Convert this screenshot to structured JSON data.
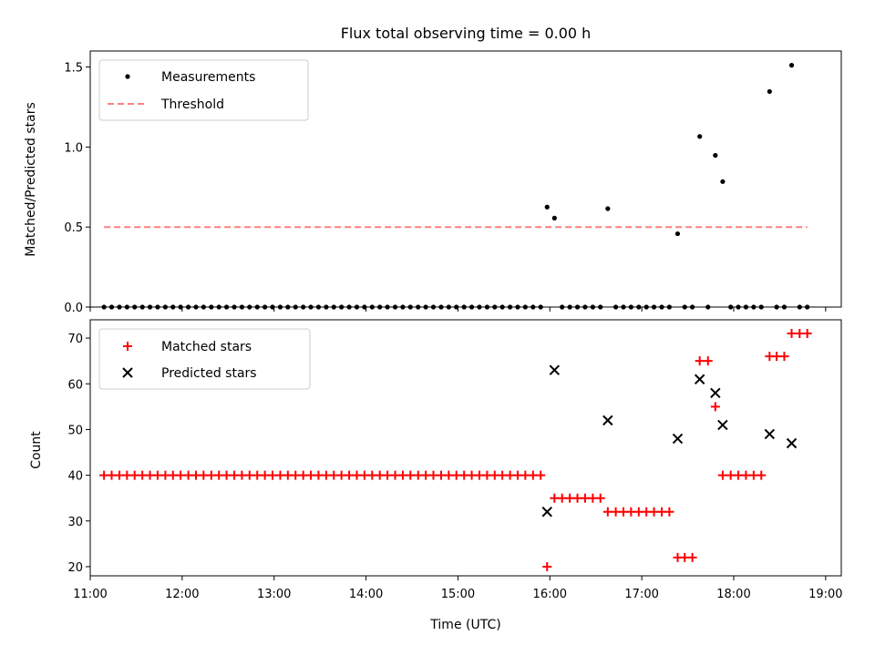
{
  "chart_data": [
    {
      "type": "scatter",
      "title": "Flux total observing time = 0.00 h",
      "xlabel": "",
      "ylabel": "Matched/Predicted stars",
      "xlim": [
        11.0,
        19.17
      ],
      "ylim": [
        0,
        1.6
      ],
      "yticks": [
        "0.0",
        "0.5",
        "1.0",
        "1.5"
      ],
      "legend_position": "top-left",
      "series": [
        {
          "name": "Measurements",
          "marker": "dot",
          "color": "#000000",
          "x": [
            11.15,
            11.233,
            11.317,
            11.4,
            11.483,
            11.567,
            11.65,
            11.733,
            11.817,
            11.9,
            11.983,
            12.067,
            12.15,
            12.233,
            12.317,
            12.4,
            12.483,
            12.567,
            12.65,
            12.733,
            12.817,
            12.9,
            12.983,
            13.067,
            13.15,
            13.233,
            13.317,
            13.4,
            13.483,
            13.567,
            13.65,
            13.733,
            13.817,
            13.9,
            13.983,
            14.067,
            14.15,
            14.233,
            14.317,
            14.4,
            14.483,
            14.567,
            14.65,
            14.733,
            14.817,
            14.9,
            14.983,
            15.067,
            15.15,
            15.233,
            15.317,
            15.4,
            15.483,
            15.567,
            15.65,
            15.733,
            15.817,
            15.9,
            15.97,
            16.05,
            16.133,
            16.217,
            16.3,
            16.383,
            16.467,
            16.55,
            16.63,
            16.717,
            16.8,
            16.883,
            16.967,
            17.05,
            17.133,
            17.217,
            17.3,
            17.39,
            17.467,
            17.55,
            17.63,
            17.72,
            17.8,
            17.88,
            17.967,
            18.05,
            18.133,
            18.217,
            18.3,
            18.39,
            18.467,
            18.55,
            18.63,
            18.717,
            18.8
          ],
          "y": [
            0,
            0,
            0,
            0,
            0,
            0,
            0,
            0,
            0,
            0,
            0,
            0,
            0,
            0,
            0,
            0,
            0,
            0,
            0,
            0,
            0,
            0,
            0,
            0,
            0,
            0,
            0,
            0,
            0,
            0,
            0,
            0,
            0,
            0,
            0,
            0,
            0,
            0,
            0,
            0,
            0,
            0,
            0,
            0,
            0,
            0,
            0,
            0,
            0,
            0,
            0,
            0,
            0,
            0,
            0,
            0,
            0,
            0,
            0.625,
            0.556,
            0,
            0,
            0,
            0,
            0,
            0,
            0.615,
            0,
            0,
            0,
            0,
            0,
            0,
            0,
            0,
            0.458,
            0,
            0,
            1.066,
            0,
            0.948,
            0.784,
            0,
            0,
            0,
            0,
            0,
            1.347,
            0,
            0,
            1.511,
            0,
            0
          ]
        },
        {
          "name": "Threshold",
          "style": "dashed",
          "color": "#ff7f7f",
          "x": [
            11.15,
            18.8
          ],
          "y": [
            0.5,
            0.5
          ]
        }
      ]
    },
    {
      "type": "scatter",
      "title": "",
      "xlabel": "Time (UTC)",
      "ylabel": "Count",
      "xlim": [
        11.0,
        19.17
      ],
      "ylim": [
        18,
        74
      ],
      "yticks": [
        "20",
        "30",
        "40",
        "50",
        "60",
        "70"
      ],
      "xticks": [
        {
          "label": "11:00",
          "value": 11
        },
        {
          "label": "12:00",
          "value": 12
        },
        {
          "label": "13:00",
          "value": 13
        },
        {
          "label": "14:00",
          "value": 14
        },
        {
          "label": "15:00",
          "value": 15
        },
        {
          "label": "16:00",
          "value": 16
        },
        {
          "label": "17:00",
          "value": 17
        },
        {
          "label": "18:00",
          "value": 18
        },
        {
          "label": "19:00",
          "value": 19
        }
      ],
      "legend_position": "top-left",
      "series": [
        {
          "name": "Matched stars",
          "marker": "plus",
          "color": "#ff0000",
          "x": [
            11.15,
            11.233,
            11.317,
            11.4,
            11.483,
            11.567,
            11.65,
            11.733,
            11.817,
            11.9,
            11.983,
            12.067,
            12.15,
            12.233,
            12.317,
            12.4,
            12.483,
            12.567,
            12.65,
            12.733,
            12.817,
            12.9,
            12.983,
            13.067,
            13.15,
            13.233,
            13.317,
            13.4,
            13.483,
            13.567,
            13.65,
            13.733,
            13.817,
            13.9,
            13.983,
            14.067,
            14.15,
            14.233,
            14.317,
            14.4,
            14.483,
            14.567,
            14.65,
            14.733,
            14.817,
            14.9,
            14.983,
            15.067,
            15.15,
            15.233,
            15.317,
            15.4,
            15.483,
            15.567,
            15.65,
            15.733,
            15.817,
            15.9,
            15.97,
            16.05,
            16.133,
            16.217,
            16.3,
            16.383,
            16.467,
            16.55,
            16.63,
            16.717,
            16.8,
            16.883,
            16.967,
            17.05,
            17.133,
            17.217,
            17.3,
            17.39,
            17.467,
            17.55,
            17.63,
            17.72,
            17.8,
            17.88,
            17.967,
            18.05,
            18.133,
            18.217,
            18.3,
            18.39,
            18.467,
            18.55,
            18.63,
            18.717,
            18.8
          ],
          "y": [
            40,
            40,
            40,
            40,
            40,
            40,
            40,
            40,
            40,
            40,
            40,
            40,
            40,
            40,
            40,
            40,
            40,
            40,
            40,
            40,
            40,
            40,
            40,
            40,
            40,
            40,
            40,
            40,
            40,
            40,
            40,
            40,
            40,
            40,
            40,
            40,
            40,
            40,
            40,
            40,
            40,
            40,
            40,
            40,
            40,
            40,
            40,
            40,
            40,
            40,
            40,
            40,
            40,
            40,
            40,
            40,
            40,
            40,
            20,
            35,
            35,
            35,
            35,
            35,
            35,
            35,
            32,
            32,
            32,
            32,
            32,
            32,
            32,
            32,
            32,
            22,
            22,
            22,
            65,
            65,
            55,
            40,
            40,
            40,
            40,
            40,
            40,
            66,
            66,
            66,
            71,
            71,
            71
          ]
        },
        {
          "name": "Predicted stars",
          "marker": "x",
          "color": "#000000",
          "x": [
            15.97,
            16.05,
            16.63,
            17.39,
            17.63,
            17.8,
            17.88,
            18.39,
            18.63
          ],
          "y": [
            32,
            63,
            52,
            48,
            61,
            58,
            51,
            49,
            47
          ]
        }
      ]
    }
  ]
}
